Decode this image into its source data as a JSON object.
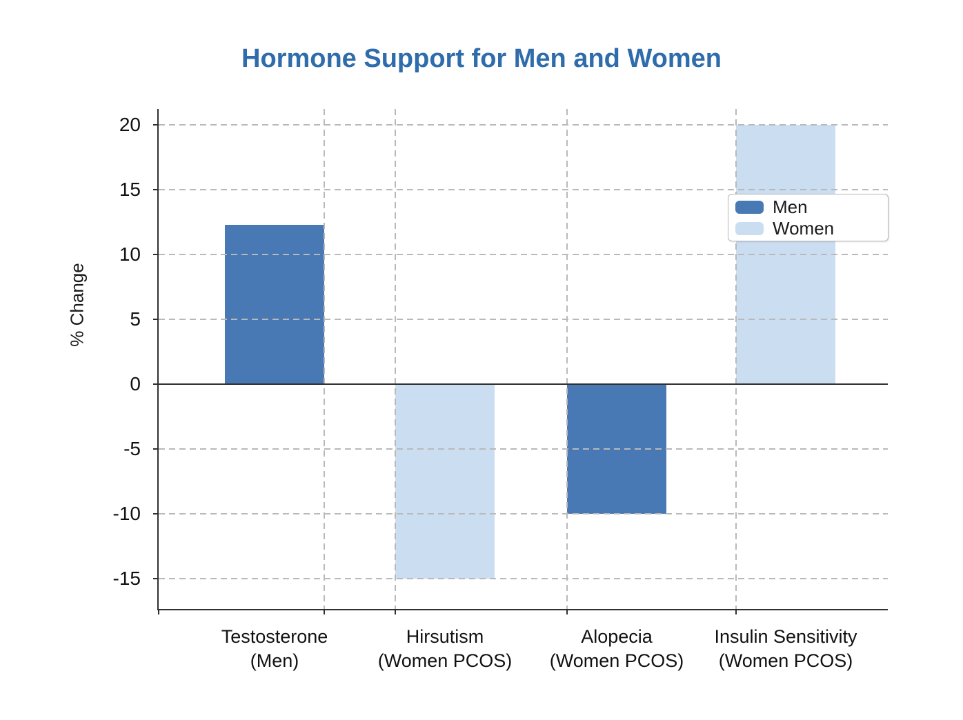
{
  "title": "Hormone Support for Men and Women",
  "colors": {
    "title": "#2e6cab",
    "axis": "#2f2f2f",
    "grid": "#b9b9b9",
    "men": "#4879b4",
    "women": "#cbddf1",
    "background": "#ffffff",
    "text": "#111111"
  },
  "y_axis": {
    "label": "% Change",
    "ticks": [
      20,
      15,
      10,
      5,
      0,
      -5,
      -10,
      -15
    ]
  },
  "legend": {
    "items": [
      {
        "label": "Men",
        "color": "#4879b4"
      },
      {
        "label": "Women",
        "color": "#cbddf1"
      }
    ]
  },
  "chart_data": {
    "type": "bar",
    "title": "Hormone Support for Men and Women",
    "xlabel": "",
    "ylabel": "% Change",
    "categories": [
      "Testosterone\n(Men)",
      "Hirsutism\n(Women PCOS)",
      "Alopecia\n(Women PCOS)",
      "Insulin Sensitivity\n(Women PCOS)"
    ],
    "series": [
      {
        "name": "Men",
        "color": "#4879b4"
      },
      {
        "name": "Women",
        "color": "#cbddf1"
      }
    ],
    "bars": [
      {
        "category": "Testosterone (Men)",
        "series": "Men",
        "value": 12.3
      },
      {
        "category": "Hirsutism (Women PCOS)",
        "series": "Women",
        "value": -15
      },
      {
        "category": "Alopecia (Women PCOS)",
        "series": "Men",
        "value": -10
      },
      {
        "category": "Insulin Sensitivity (Women PCOS)",
        "series": "Women",
        "value": 20
      }
    ],
    "yticks": [
      20,
      15,
      10,
      5,
      0,
      -5,
      -10,
      -15
    ],
    "ylim": [
      -17.3,
      21.2
    ],
    "grid": {
      "x": true,
      "y": true,
      "style": "dashed"
    },
    "legend_position": "upper-right",
    "zero_line": true
  }
}
